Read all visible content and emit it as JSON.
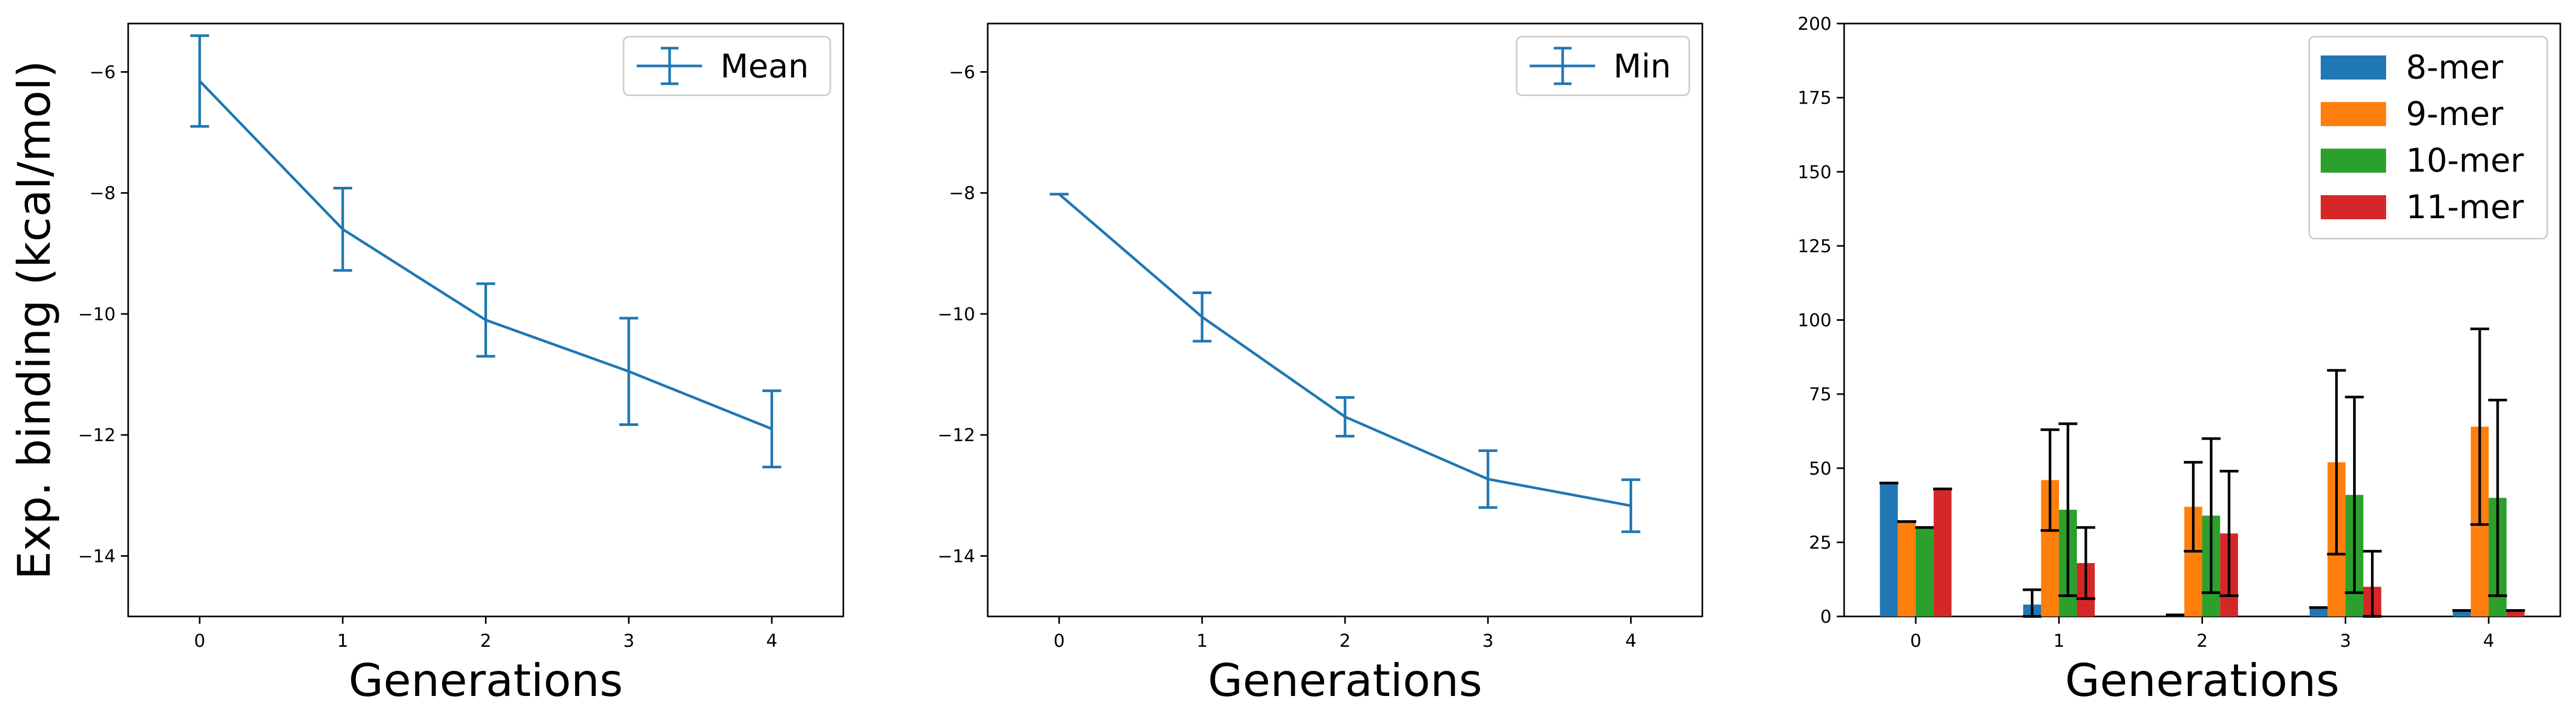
{
  "colors": {
    "line": "#1f77b4",
    "bars": [
      "#1f77b4",
      "#ff7f0e",
      "#2ca02c",
      "#d62728"
    ],
    "errorbar_bars": "#000000"
  },
  "chart_data": [
    {
      "type": "line",
      "x": [
        0,
        1,
        2,
        3,
        4
      ],
      "series": [
        {
          "name": "Mean",
          "values": [
            -6.15,
            -8.6,
            -10.1,
            -10.95,
            -11.9
          ],
          "errors": [
            0.75,
            0.68,
            0.6,
            0.88,
            0.63
          ]
        }
      ],
      "xticks": [
        "0",
        "1",
        "2",
        "3",
        "4"
      ],
      "yticks": [
        "−14",
        "−12",
        "−10",
        "−8",
        "−6"
      ],
      "ytick_values": [
        -14,
        -12,
        -10,
        -8,
        -6
      ],
      "xlabel": "Generations",
      "ylabel": "Exp. binding (kcal/mol)",
      "xlim": [
        -0.5,
        4.5
      ],
      "ylim": [
        -15,
        -5.2
      ],
      "legend": "upper right",
      "grid": false
    },
    {
      "type": "line",
      "x": [
        0,
        1,
        2,
        3,
        4
      ],
      "series": [
        {
          "name": "Min",
          "values": [
            -8.02,
            -10.05,
            -11.7,
            -12.73,
            -13.17
          ],
          "errors": [
            0.0,
            0.4,
            0.32,
            0.47,
            0.43
          ]
        }
      ],
      "xticks": [
        "0",
        "1",
        "2",
        "3",
        "4"
      ],
      "yticks": [
        "−14",
        "−12",
        "−10",
        "−8",
        "−6"
      ],
      "ytick_values": [
        -14,
        -12,
        -10,
        -8,
        -6
      ],
      "xlabel": "Generations",
      "ylabel": "",
      "xlim": [
        -0.5,
        4.5
      ],
      "ylim": [
        -15,
        -5.2
      ],
      "legend": "upper right",
      "grid": false
    },
    {
      "type": "bar",
      "categories": [
        "0",
        "1",
        "2",
        "3",
        "4"
      ],
      "series": [
        {
          "name": "8-mer",
          "values": [
            45,
            4,
            0.5,
            3,
            2
          ],
          "errors": [
            0,
            5,
            0,
            0,
            0
          ]
        },
        {
          "name": "9-mer",
          "values": [
            32,
            46,
            37,
            52,
            64
          ],
          "errors": [
            0,
            17,
            15,
            31,
            33
          ]
        },
        {
          "name": "10-mer",
          "values": [
            30,
            36,
            34,
            41,
            40
          ],
          "errors": [
            0,
            29,
            26,
            33,
            33
          ]
        },
        {
          "name": "11-mer",
          "values": [
            43,
            18,
            28,
            10,
            2
          ],
          "errors": [
            0,
            12,
            21,
            12,
            0
          ]
        }
      ],
      "yticks": [
        "0",
        "25",
        "50",
        "75",
        "100",
        "125",
        "150",
        "175",
        "200"
      ],
      "ytick_values": [
        0,
        25,
        50,
        75,
        100,
        125,
        150,
        175,
        200
      ],
      "xlabel": "Generations",
      "ylabel": "",
      "xlim": [
        -0.5,
        4.5
      ],
      "ylim": [
        0,
        200
      ],
      "legend": "upper right",
      "grid": false
    }
  ]
}
